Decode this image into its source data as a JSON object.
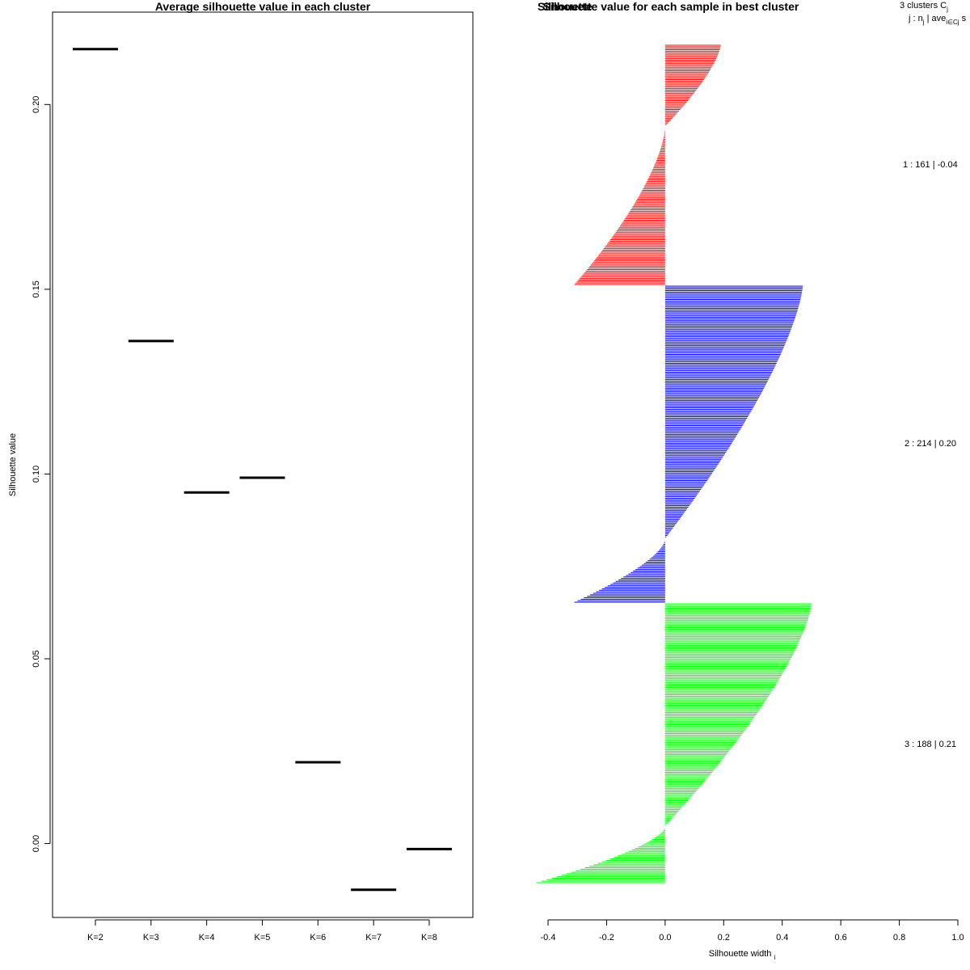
{
  "chart_data": [
    {
      "type": "line",
      "title": "Average silhouette value in each cluster",
      "xlabel": "",
      "ylabel": "Silhouette value",
      "ylim": [
        -0.02,
        0.225
      ],
      "yticks": [
        0.0,
        0.05,
        0.1,
        0.15,
        0.2
      ],
      "ytick_labels": [
        "0.00",
        "0.05",
        "0.10",
        "0.15",
        "0.20"
      ],
      "categories": [
        "K=2",
        "K=3",
        "K=4",
        "K=5",
        "K=6",
        "K=7",
        "K=8"
      ],
      "values": [
        0.215,
        0.136,
        0.095,
        0.099,
        0.022,
        -0.0125,
        -0.0015
      ]
    },
    {
      "type": "bar",
      "title": "Silhouette value for each sample in best cluster",
      "title_overlap_text": "Silhouette",
      "xlabel": "Silhouette width",
      "xlabel_subscript": "i",
      "xlim": [
        -0.4,
        1.0
      ],
      "xticks": [
        -0.4,
        -0.2,
        0.0,
        0.2,
        0.4,
        0.6,
        0.8,
        1.0
      ],
      "xtick_labels": [
        "-0.4",
        "-0.2",
        "0.0",
        "0.2",
        "0.4",
        "0.6",
        "0.8",
        "1.0"
      ],
      "legend_header": "3  clusters  C",
      "legend_header_sub": "j",
      "legend_subheader": "j :  n",
      "legend_subheader_sub": "j",
      "legend_subheader_rest": " | ave",
      "legend_subheader_sub2": "i∈Cj",
      "legend_subheader_tail": "  s",
      "series": [
        {
          "cluster": "1",
          "n": 161,
          "label": "1 :  161  |  -0.04",
          "color": "#ff0000",
          "pos_max": 0.19,
          "pos_count": 55,
          "neg_min": -0.31,
          "neg_count": 106
        },
        {
          "cluster": "2",
          "n": 214,
          "label": "2 :  214  |  0.20",
          "color": "#0000ff",
          "pos_max": 0.47,
          "pos_count": 171,
          "neg_min": -0.31,
          "neg_count": 43
        },
        {
          "cluster": "3",
          "n": 188,
          "label": "3 :  188  |  0.21",
          "color": "#00ff00",
          "pos_max": 0.5,
          "pos_count": 150,
          "neg_min": -0.44,
          "neg_count": 38
        }
      ]
    }
  ]
}
